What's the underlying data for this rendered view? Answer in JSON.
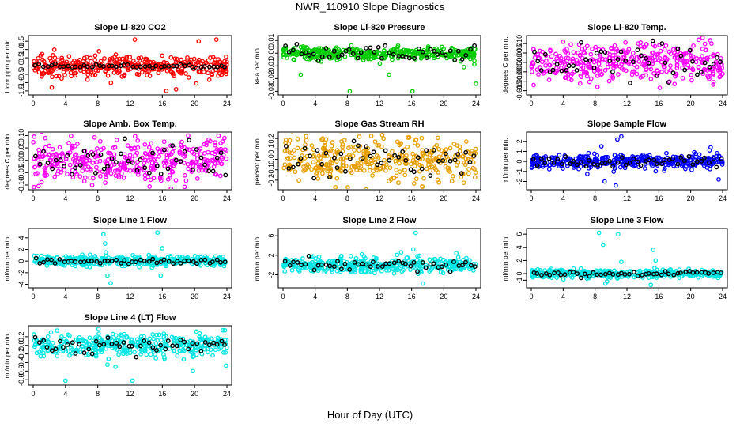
{
  "page_title": "NWR_110910  Slope Diagnostics",
  "x_axis_label": "Hour of Day (UTC)",
  "chart_data": [
    {
      "type": "scatter",
      "title": "Slope Li-820 CO2",
      "ylabel": "Licor ppm per min.",
      "xlim": [
        0,
        24
      ],
      "xticks": [
        0,
        4,
        8,
        12,
        16,
        20,
        24
      ],
      "ylim": [
        -1.6,
        1.7
      ],
      "yticks": [
        -1.5,
        -1.0,
        -0.5,
        0.0,
        0.5,
        1.0,
        1.5
      ],
      "ytick_labels": [
        "-1.5",
        "-1.0",
        "-0.5",
        "0.0",
        "0.5",
        "1.0",
        "1.5"
      ],
      "color": "#ff0000",
      "spread": 0.3,
      "mean_spread": 0.06,
      "outliers": [
        [
          12.6,
          1.6
        ],
        [
          17.7,
          -1.4
        ],
        [
          2.3,
          -1.3
        ],
        [
          16.5,
          -1.5
        ],
        [
          20.5,
          1.5
        ],
        [
          22.7,
          1.6
        ]
      ]
    },
    {
      "type": "scatter",
      "title": "Slope Li-820 Pressure",
      "ylabel": "kPa per min.",
      "xlim": [
        0,
        24
      ],
      "xticks": [
        0,
        4,
        8,
        12,
        16,
        20,
        24
      ],
      "ylim": [
        -0.031,
        0.012
      ],
      "yticks": [
        -0.03,
        -0.02,
        -0.01,
        0.0,
        0.01
      ],
      "ytick_labels": [
        "-0.03",
        "-0.02",
        "-0.01",
        "0.00",
        "0.01"
      ],
      "color": "#00cc00",
      "center": 0.0,
      "spread": 0.0025,
      "mean_spread": 0.003,
      "outliers": [
        [
          8.3,
          -0.03
        ],
        [
          16.1,
          -0.03
        ],
        [
          24.0,
          -0.024
        ],
        [
          13.2,
          -0.017
        ],
        [
          2.2,
          -0.017
        ],
        [
          22.5,
          -0.011
        ],
        [
          23.8,
          -0.006
        ]
      ]
    },
    {
      "type": "scatter",
      "title": "Slope Li-820 Temp.",
      "ylabel": "degrees C per min.",
      "xlim": [
        0,
        24
      ],
      "xticks": [
        0,
        4,
        8,
        12,
        16,
        20,
        24
      ],
      "ylim": [
        -0.016,
        0.013
      ],
      "yticks": [
        -0.015,
        -0.01,
        -0.005,
        0.0,
        0.005,
        0.01
      ],
      "ytick_labels": [
        "-0.015",
        "-0.010",
        "-0.005",
        "0.000",
        "0.005",
        "0.010"
      ],
      "color": "#ff00ff",
      "spread": 0.005,
      "mean_spread": 0.005,
      "outliers": [
        [
          4.0,
          0.011
        ],
        [
          8.3,
          -0.013
        ],
        [
          21.0,
          0.012
        ],
        [
          13.4,
          0.01
        ],
        [
          22.6,
          0.01
        ],
        [
          0.3,
          -0.012
        ]
      ]
    },
    {
      "type": "scatter",
      "title": "Slope Amb. Box Temp.",
      "ylabel": "degrees C per min.",
      "xlim": [
        0,
        24
      ],
      "xticks": [
        0,
        4,
        8,
        12,
        16,
        20,
        24
      ],
      "ylim": [
        -0.11,
        0.105
      ],
      "yticks": [
        -0.1,
        -0.05,
        0.0,
        0.05,
        0.1
      ],
      "ytick_labels": [
        "-0.10",
        "-0.05",
        "0.00",
        "0.05",
        "0.10"
      ],
      "color": "#ff00ff",
      "spread": 0.045,
      "mean_spread": 0.04,
      "outliers": [
        [
          7.3,
          -0.1
        ],
        [
          1.5,
          0.09
        ],
        [
          19.2,
          0.1
        ],
        [
          23.7,
          0.09
        ]
      ]
    },
    {
      "type": "scatter",
      "title": "Slope Gas Stream RH",
      "ylabel": "percent per min.",
      "xlim": [
        0,
        24
      ],
      "xticks": [
        0,
        4,
        8,
        12,
        16,
        20,
        24
      ],
      "ylim": [
        -0.27,
        0.24
      ],
      "yticks": [
        -0.2,
        -0.1,
        0.0,
        0.1,
        0.2
      ],
      "ytick_labels": [
        "-0.2",
        "-0.1",
        "0.0",
        "0.1",
        "0.2"
      ],
      "color": "#e8a000",
      "spread": 0.1,
      "mean_spread": 0.08,
      "outliers": [
        [
          17.3,
          -0.26
        ],
        [
          15.7,
          0.21
        ],
        [
          0.3,
          0.16
        ],
        [
          22.8,
          0.17
        ]
      ]
    },
    {
      "type": "scatter",
      "title": "Slope Sample Flow",
      "ylabel": "ml/min per min.",
      "xlim": [
        0,
        24
      ],
      "xticks": [
        0,
        4,
        8,
        12,
        16,
        20,
        24
      ],
      "ylim": [
        -2.6,
        2.7
      ],
      "yticks": [
        -2,
        -1,
        0,
        1,
        2
      ],
      "ytick_labels": [
        "-2",
        "-1",
        "0",
        "1",
        "2"
      ],
      "color": "#0000ff",
      "spread": 0.35,
      "mean_spread": 0.25,
      "outliers": [
        [
          11.3,
          2.5
        ],
        [
          10.8,
          2.2
        ],
        [
          9.2,
          -2.0
        ],
        [
          10.6,
          -2.4
        ],
        [
          8.8,
          1.5
        ],
        [
          22.5,
          1.4
        ],
        [
          23.5,
          -1.8
        ]
      ]
    },
    {
      "type": "scatter",
      "title": "Slope Line 1 Flow",
      "ylabel": "ml/min per min.",
      "xlim": [
        0,
        24
      ],
      "xticks": [
        0,
        4,
        8,
        12,
        16,
        20,
        24
      ],
      "ylim": [
        -4.2,
        5.2
      ],
      "yticks": [
        -4,
        -2,
        0,
        2,
        4
      ],
      "ytick_labels": [
        "-4",
        "-2",
        "0",
        "2",
        "4"
      ],
      "color": "#00e5e5",
      "spread": 0.45,
      "mean_spread": 0.2,
      "outliers": [
        [
          8.7,
          4.6
        ],
        [
          8.9,
          3.0
        ],
        [
          9.2,
          -2.5
        ],
        [
          9.6,
          -3.8
        ],
        [
          9.0,
          1.5
        ],
        [
          15.4,
          4.9
        ],
        [
          15.8,
          -2.5
        ],
        [
          16.0,
          2.2
        ]
      ]
    },
    {
      "type": "scatter",
      "title": "Slope Line 2 Flow",
      "ylabel": "ml/min per min.",
      "xlim": [
        0,
        24
      ],
      "xticks": [
        0,
        4,
        8,
        12,
        16,
        20,
        24
      ],
      "ylim": [
        -4.2,
        7.0
      ],
      "yticks": [
        -2,
        2,
        6
      ],
      "ytick_labels": [
        "-2",
        "2",
        "6"
      ],
      "color": "#00e5e5",
      "spread": 0.8,
      "mean_spread": 0.6,
      "outliers": [
        [
          16.5,
          6.6
        ],
        [
          16.2,
          3.2
        ],
        [
          17.4,
          -3.8
        ],
        [
          14.7,
          2.6
        ],
        [
          9.8,
          2.2
        ]
      ]
    },
    {
      "type": "scatter",
      "title": "Slope Line 3 Flow",
      "ylabel": "ml/min per min.",
      "xlim": [
        0,
        24
      ],
      "xticks": [
        0,
        4,
        8,
        12,
        16,
        20,
        24
      ],
      "ylim": [
        -1.8,
        6.5
      ],
      "yticks": [
        -1,
        0,
        2,
        4,
        6
      ],
      "ytick_labels": [
        "-1",
        "0",
        "2",
        "4",
        "6"
      ],
      "color": "#00e5e5",
      "spread": 0.3,
      "mean_spread": 0.2,
      "outliers": [
        [
          8.5,
          6.2
        ],
        [
          10.9,
          6.0
        ],
        [
          9.0,
          4.4
        ],
        [
          9.3,
          -1.5
        ],
        [
          9.5,
          -1.2
        ],
        [
          15.3,
          3.6
        ],
        [
          15.0,
          -1.7
        ],
        [
          15.6,
          2.0
        ],
        [
          11.3,
          1.8
        ]
      ]
    },
    {
      "type": "scatter",
      "title": "Slope Line 4 (LT) Flow",
      "ylabel": "ml/min per min.",
      "xlim": [
        0,
        24
      ],
      "xticks": [
        0,
        4,
        8,
        12,
        16,
        20,
        24
      ],
      "ylim": [
        -0.87,
        0.4
      ],
      "yticks": [
        -0.8,
        -0.6,
        -0.4,
        -0.2,
        0.0,
        0.2
      ],
      "ytick_labels": [
        "-0.8",
        "-0.6",
        "-0.4",
        "-0.2",
        "0.0",
        "0.2"
      ],
      "color": "#00e5e5",
      "spread": 0.13,
      "mean_spread": 0.1,
      "outliers": [
        [
          4.0,
          -0.82
        ],
        [
          12.3,
          -0.82
        ],
        [
          19.8,
          -0.6
        ],
        [
          10.2,
          -0.5
        ],
        [
          9.2,
          -0.45
        ],
        [
          23.5,
          0.35
        ],
        [
          2.2,
          0.3
        ]
      ]
    }
  ]
}
